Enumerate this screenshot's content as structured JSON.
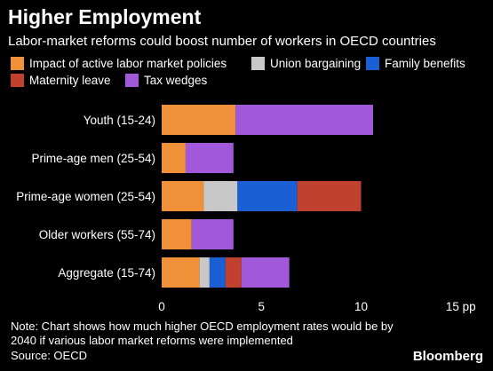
{
  "title": "Higher Employment",
  "subtitle": "Labor-market reforms could boost number of workers in OECD countries",
  "note": "Note: Chart shows how much higher OECD employment rates would be by 2040 if various labor market reforms were implemented",
  "source": "Source: OECD",
  "brand": "Bloomberg",
  "chart_data": {
    "type": "bar",
    "orientation": "horizontal",
    "stacked": true,
    "categories": [
      "Youth (15-24)",
      "Prime-age men (25-54)",
      "Prime-age women (25-54)",
      "Older workers (55-74)",
      "Aggregate (15-74)"
    ],
    "series": [
      {
        "name": "Impact of active labor market policies",
        "color": "#f0913a",
        "values": [
          3.7,
          1.2,
          2.1,
          1.5,
          1.9
        ]
      },
      {
        "name": "Union bargaining",
        "color": "#c8c8c8",
        "values": [
          0,
          0,
          1.7,
          0,
          0.5
        ]
      },
      {
        "name": "Family benefits",
        "color": "#1a5fd4",
        "values": [
          0,
          0,
          3.0,
          0,
          0.8
        ]
      },
      {
        "name": "Maternity leave",
        "color": "#c0412e",
        "values": [
          0,
          0,
          3.2,
          0,
          0.8
        ]
      },
      {
        "name": "Tax wedges",
        "color": "#a259d9",
        "values": [
          6.9,
          2.4,
          0,
          2.1,
          2.4
        ]
      }
    ],
    "xticks": [
      "0",
      "5",
      "10",
      "15 pp"
    ],
    "xtick_values": [
      0,
      5,
      10,
      15
    ],
    "xlim": [
      0,
      15
    ],
    "grid": false,
    "legend_position": "top"
  }
}
